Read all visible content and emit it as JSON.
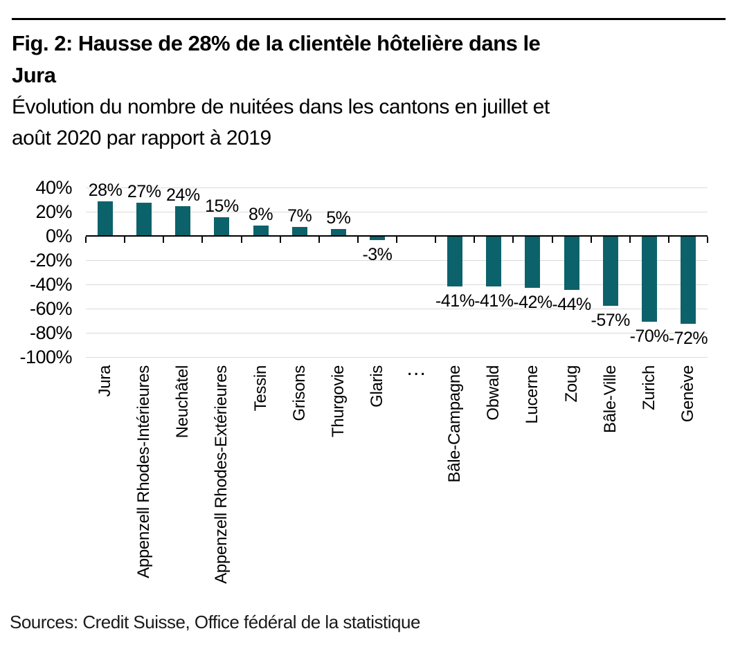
{
  "page": {
    "title_line1": "Fig. 2: Hausse de 28% de la clientèle hôtelière dans le",
    "title_line2": "Jura",
    "subtitle_line1": "Évolution du nombre de nuitées dans les cantons en juillet et",
    "subtitle_line2": "août 2020 par rapport à 2019",
    "source": "Sources: Credit Suisse, Office fédéral de la statistique"
  },
  "colors": {
    "bar": "#0C626B",
    "gridline": "#D9D9D9",
    "axis": "#000000",
    "rule": "#000000",
    "text": "#000000"
  },
  "chart_data": {
    "type": "bar",
    "title": "Fig. 2: Hausse de 28% de la clientèle hôtelière dans le Jura",
    "subtitle": "Évolution du nombre de nuitées dans les cantons en juillet et août 2020 par rapport à 2019",
    "categories": [
      "Jura",
      "Appenzell Rhodes-Intérieures",
      "Neuchâtel",
      "Appenzell Rhodes-Extérieures",
      "Tessin",
      "Grisons",
      "Thurgovie",
      "Glaris",
      "…",
      "Bâle-Campagne",
      "Obwald",
      "Lucerne",
      "Zoug",
      "Bâle-Ville",
      "Zurich",
      "Genève"
    ],
    "values": [
      28,
      27,
      24,
      15,
      8,
      7,
      5,
      -3,
      null,
      -41,
      -41,
      -42,
      -44,
      -57,
      -70,
      -72
    ],
    "value_labels": [
      "28%",
      "27%",
      "24%",
      "15%",
      "8%",
      "7%",
      "5%",
      "-3%",
      "",
      "-41%",
      "-41%",
      "-42%",
      "-44%",
      "-57%",
      "-70%",
      "-72%"
    ],
    "unit": "%",
    "xlabel": "",
    "ylabel": "",
    "ylim": [
      -100,
      40
    ],
    "y_ticks": [
      40,
      20,
      0,
      -20,
      -40,
      -60,
      -80,
      -100
    ],
    "y_tick_labels": [
      "40%",
      "20%",
      "0%",
      "-20%",
      "-40%",
      "-60%",
      "-80%",
      "-100%"
    ],
    "grid": "horizontal",
    "legend": "none",
    "bar_color": "#0C626B",
    "source": "Sources: Credit Suisse, Office fédéral de la statistique"
  }
}
